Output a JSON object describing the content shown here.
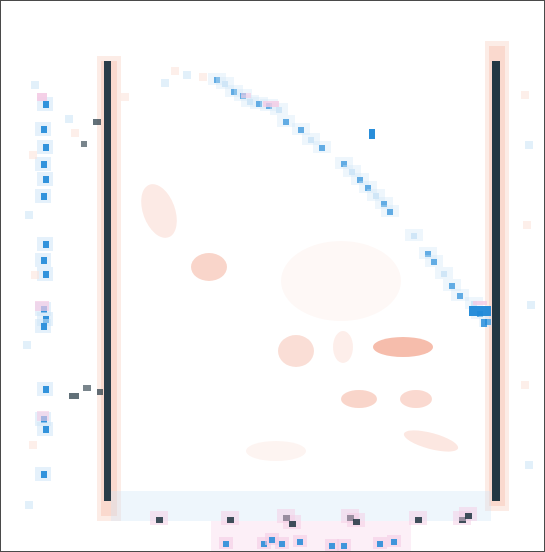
{
  "image": {
    "kind": "pixelated attribution heatmap",
    "text": "",
    "colors": {
      "frame_border": "#4a4a4a",
      "background": "#ffffff",
      "positive": "#f2a189",
      "positive_faint": "#fbe4dc",
      "negative": "#1e88d8",
      "negative_faint": "#cfe6f7",
      "strong": "#1f3440",
      "pink": "#f4cbe4"
    }
  }
}
